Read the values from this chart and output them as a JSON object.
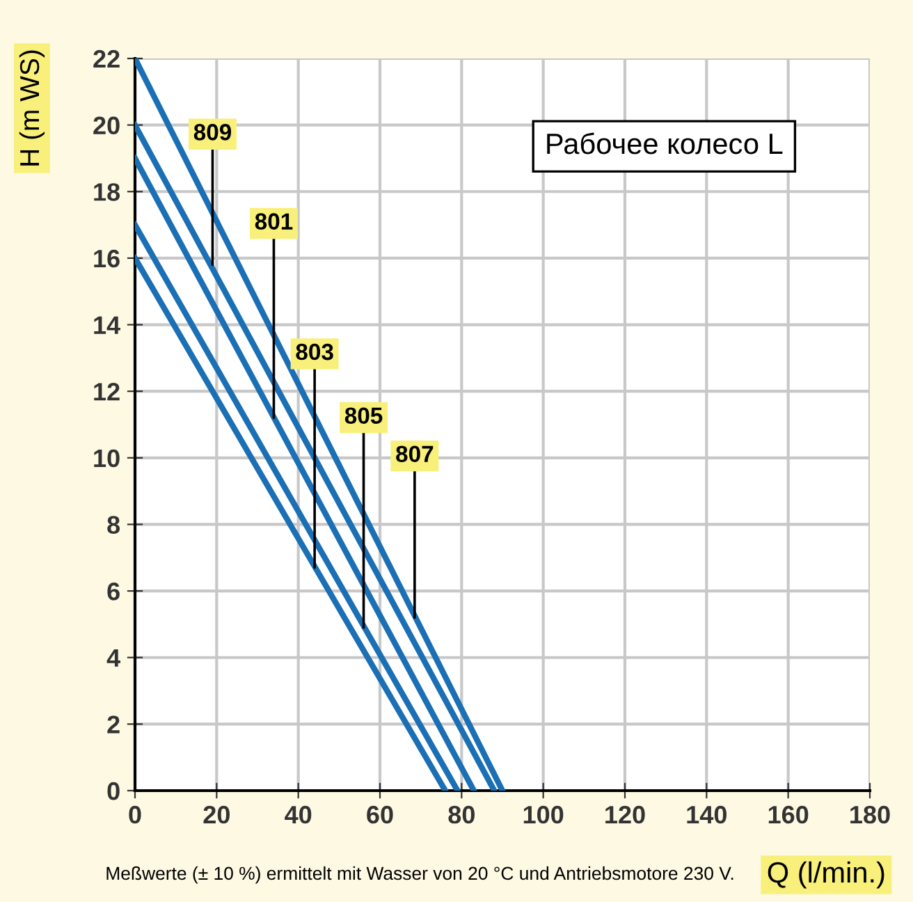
{
  "chart_data": {
    "type": "line",
    "title": "Рабочее колесо L",
    "xlabel": "Q (l/min.)",
    "ylabel": "H (m WS)",
    "xlim": [
      0,
      180
    ],
    "ylim": [
      0,
      22
    ],
    "xticks": [
      0,
      20,
      40,
      60,
      80,
      100,
      120,
      140,
      160,
      180
    ],
    "yticks": [
      0,
      2,
      4,
      6,
      8,
      10,
      12,
      14,
      16,
      18,
      20,
      22
    ],
    "grid": true,
    "marker": "none",
    "line_style": "solid",
    "series": [
      {
        "color": "#1a6fb5",
        "x": [
          0,
          90
        ],
        "values": [
          22,
          0
        ]
      },
      {
        "color": "#1a6fb5",
        "x": [
          0,
          88
        ],
        "values": [
          20,
          0
        ]
      },
      {
        "color": "#1a6fb5",
        "x": [
          0,
          83
        ],
        "values": [
          19,
          0
        ]
      },
      {
        "color": "#1a6fb5",
        "x": [
          0,
          79
        ],
        "values": [
          17,
          0
        ]
      },
      {
        "color": "#1a6fb5",
        "x": [
          0,
          76
        ],
        "values": [
          16,
          0
        ]
      }
    ],
    "annotations": [
      {
        "text": "809",
        "x": 19,
        "y": 15.8
      },
      {
        "text": "801",
        "x": 34,
        "y": 11.2
      },
      {
        "text": "803",
        "x": 44,
        "y": 6.7
      },
      {
        "text": "805",
        "x": 56,
        "y": 4.9
      },
      {
        "text": "807",
        "x": 68.5,
        "y": 5.2
      },
      "Meßwerte (± 10 %) ermittelt mit Wasser von 20 °C und Antriebsmotore 230 V."
    ]
  }
}
